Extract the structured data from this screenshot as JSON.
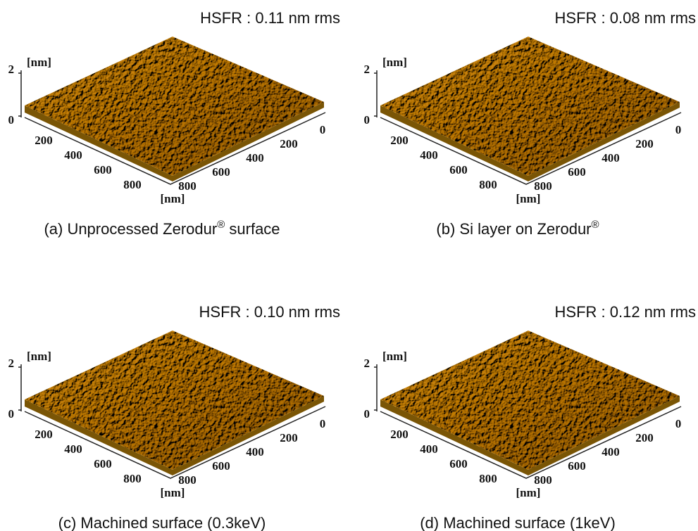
{
  "panels": [
    {
      "hsfr": "HSFR : 0.11 nm rms",
      "z_unit": "[nm]",
      "z_ticks": [
        "2",
        "0"
      ],
      "left_ticks": [
        "200",
        "400",
        "600",
        "800"
      ],
      "right_ticks": [
        "0",
        "200",
        "400",
        "600",
        "800"
      ],
      "xy_unit": "[nm]",
      "caption": {
        "text": "(a) Unprocessed Zerodur",
        "sup": "®",
        "after": " surface"
      }
    },
    {
      "hsfr": "HSFR : 0.08 nm rms",
      "z_unit": "[nm]",
      "z_ticks": [
        "2",
        "0"
      ],
      "left_ticks": [
        "200",
        "400",
        "600",
        "800"
      ],
      "right_ticks": [
        "0",
        "200",
        "400",
        "600",
        "800"
      ],
      "xy_unit": "[nm]",
      "caption": {
        "text": "(b)  Si layer on Zerodur",
        "sup": "®"
      }
    },
    {
      "hsfr": "HSFR : 0.10 nm rms",
      "z_unit": "[nm]",
      "z_ticks": [
        "2",
        "0"
      ],
      "left_ticks": [
        "200",
        "400",
        "600",
        "800"
      ],
      "right_ticks": [
        "0",
        "200",
        "400",
        "600",
        "800"
      ],
      "xy_unit": "[nm]",
      "caption": {
        "text": "(c) Machined surface (0.3keV)"
      }
    },
    {
      "hsfr": "HSFR : 0.12 nm rms",
      "z_unit": "[nm]",
      "z_ticks": [
        "2",
        "0"
      ],
      "left_ticks": [
        "200",
        "400",
        "600",
        "800"
      ],
      "right_ticks": [
        "0",
        "200",
        "400",
        "600",
        "800"
      ],
      "xy_unit": "[nm]",
      "caption": {
        "text": "(d) Machined surface (1keV)"
      }
    }
  ]
}
